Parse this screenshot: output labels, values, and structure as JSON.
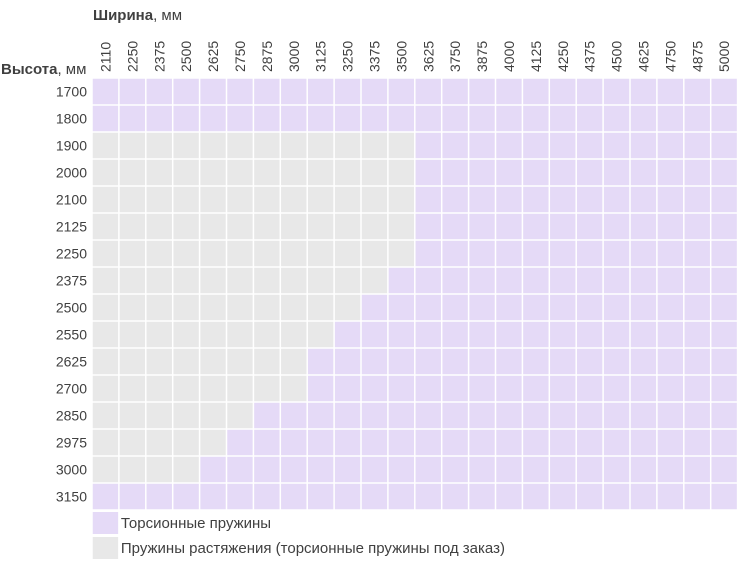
{
  "chart_data": {
    "type": "heatmap",
    "x_title": "Ширина",
    "x_unit": ", мм",
    "y_title": "Высота",
    "y_unit": ", мм",
    "widths": [
      "2110",
      "2250",
      "2375",
      "2500",
      "2625",
      "2750",
      "2875",
      "3000",
      "3125",
      "3250",
      "3375",
      "3500",
      "3625",
      "3750",
      "3875",
      "4000",
      "4125",
      "4250",
      "4375",
      "4500",
      "4625",
      "4750",
      "4875",
      "5000"
    ],
    "heights": [
      "1700",
      "1800",
      "1900",
      "2000",
      "2100",
      "2125",
      "2250",
      "2375",
      "2500",
      "2550",
      "2625",
      "2700",
      "2850",
      "2975",
      "3000",
      "3150"
    ],
    "torsion_from_width": [
      "2110",
      "2110",
      "3625",
      "3625",
      "3625",
      "3625",
      "3625",
      "3500",
      "3375",
      "3250",
      "3125",
      "3125",
      "2875",
      "2750",
      "2625",
      "2110"
    ],
    "legend": [
      {
        "key": "torsion",
        "label": "Торсионные пружины",
        "color": "#e5daf7"
      },
      {
        "key": "extension",
        "label": "Пружины растяжения (торсионные пружины под заказ)",
        "color": "#e8e8e8"
      }
    ]
  }
}
